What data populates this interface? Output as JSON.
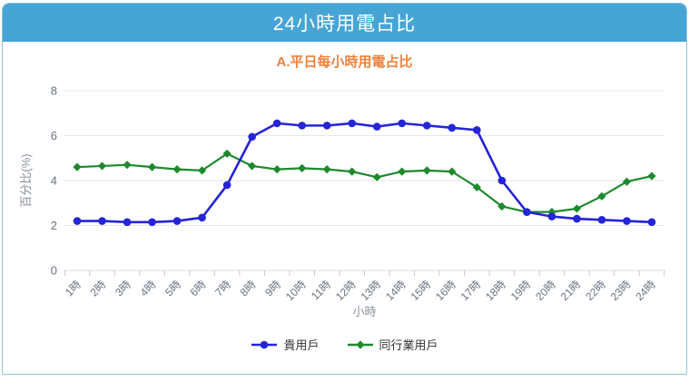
{
  "header": {
    "title": "24小時用電占比"
  },
  "subtitle": "A.平日每小時用電占比",
  "colors": {
    "header_bg": "#47a5d6",
    "subtitle": "#f0813c",
    "panel_border": "#8cc2d6",
    "gridline": "#e7e7e7",
    "axis_line": "#d7dbe0",
    "tick": "#c3cdd6",
    "axis_text": "#6b7280",
    "axis_title_text": "#8a919b",
    "series_blue": "#2424d8",
    "series_green": "#1d8a2d"
  },
  "chart_data": {
    "type": "line",
    "title": "24小時用電占比",
    "subtitle": "A.平日每小時用電占比",
    "categories": [
      "1時",
      "2時",
      "3時",
      "4時",
      "5時",
      "6時",
      "7時",
      "8時",
      "9時",
      "10時",
      "11時",
      "12時",
      "13時",
      "14時",
      "15時",
      "16時",
      "17時",
      "18時",
      "19時",
      "20時",
      "21時",
      "22時",
      "23時",
      "24時"
    ],
    "series": [
      {
        "name": "貴用戶",
        "color": "#2424d8",
        "marker": "circle",
        "values": [
          2.2,
          2.2,
          2.15,
          2.15,
          2.2,
          2.35,
          3.8,
          5.95,
          6.55,
          6.45,
          6.45,
          6.55,
          6.4,
          6.55,
          6.45,
          6.35,
          6.25,
          4.0,
          2.6,
          2.4,
          2.3,
          2.25,
          2.2,
          2.15
        ]
      },
      {
        "name": "同行業用戶",
        "color": "#1d8a2d",
        "marker": "diamond",
        "values": [
          4.6,
          4.65,
          4.7,
          4.6,
          4.5,
          4.45,
          5.2,
          4.65,
          4.5,
          4.55,
          4.5,
          4.4,
          4.15,
          4.4,
          4.45,
          4.4,
          3.7,
          2.85,
          2.6,
          2.6,
          2.75,
          3.3,
          3.95,
          4.2
        ]
      }
    ],
    "xlabel": "小時",
    "ylabel": "百分比(%)",
    "yticks": [
      0,
      2,
      4,
      6,
      8
    ],
    "ylim": [
      0,
      8
    ],
    "grid": true,
    "legend_position": "bottom"
  }
}
